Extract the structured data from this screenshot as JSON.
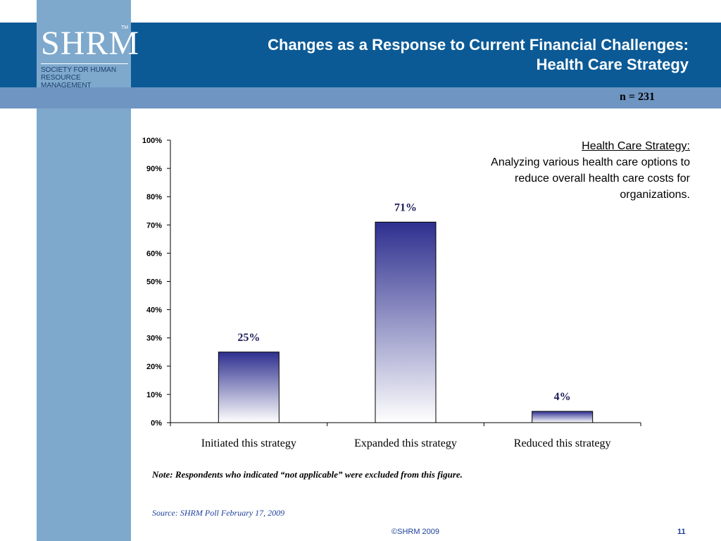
{
  "logo": {
    "mark": "SHRM",
    "tm": "TM",
    "line1": "SOCIETY FOR HUMAN",
    "line2": "RESOURCE MANAGEMENT"
  },
  "slide": {
    "title_line1": "Changes as a Response to Current Financial Challenges:",
    "title_line2": "Health Care Strategy",
    "n_label": "n = 231",
    "definition_heading": "Health Care Strategy:",
    "definition_text": "Analyzing various health care options to reduce overall health care costs for organizations.",
    "note": "Note: Respondents who indicated “not applicable” were excluded from this figure.",
    "source": "Source: SHRM Poll February 17, 2009",
    "copyright": "©SHRM 2009",
    "page_number": "11"
  },
  "colors": {
    "header": "#0b5a96",
    "sub_band": "#6f95c2",
    "stripe": "#7ea9cd",
    "bar_top": "#2e2f8f",
    "bar_bottom": "#ffffff"
  },
  "chart_data": {
    "type": "bar",
    "categories": [
      "Initiated this strategy",
      "Expanded this strategy",
      "Reduced this strategy"
    ],
    "values": [
      25,
      71,
      4
    ],
    "value_labels": [
      "25%",
      "71%",
      "4%"
    ],
    "y_ticks": [
      "0%",
      "10%",
      "20%",
      "30%",
      "40%",
      "50%",
      "60%",
      "70%",
      "80%",
      "90%",
      "100%"
    ],
    "ylim": [
      0,
      100
    ],
    "grid": false,
    "legend": "none"
  }
}
